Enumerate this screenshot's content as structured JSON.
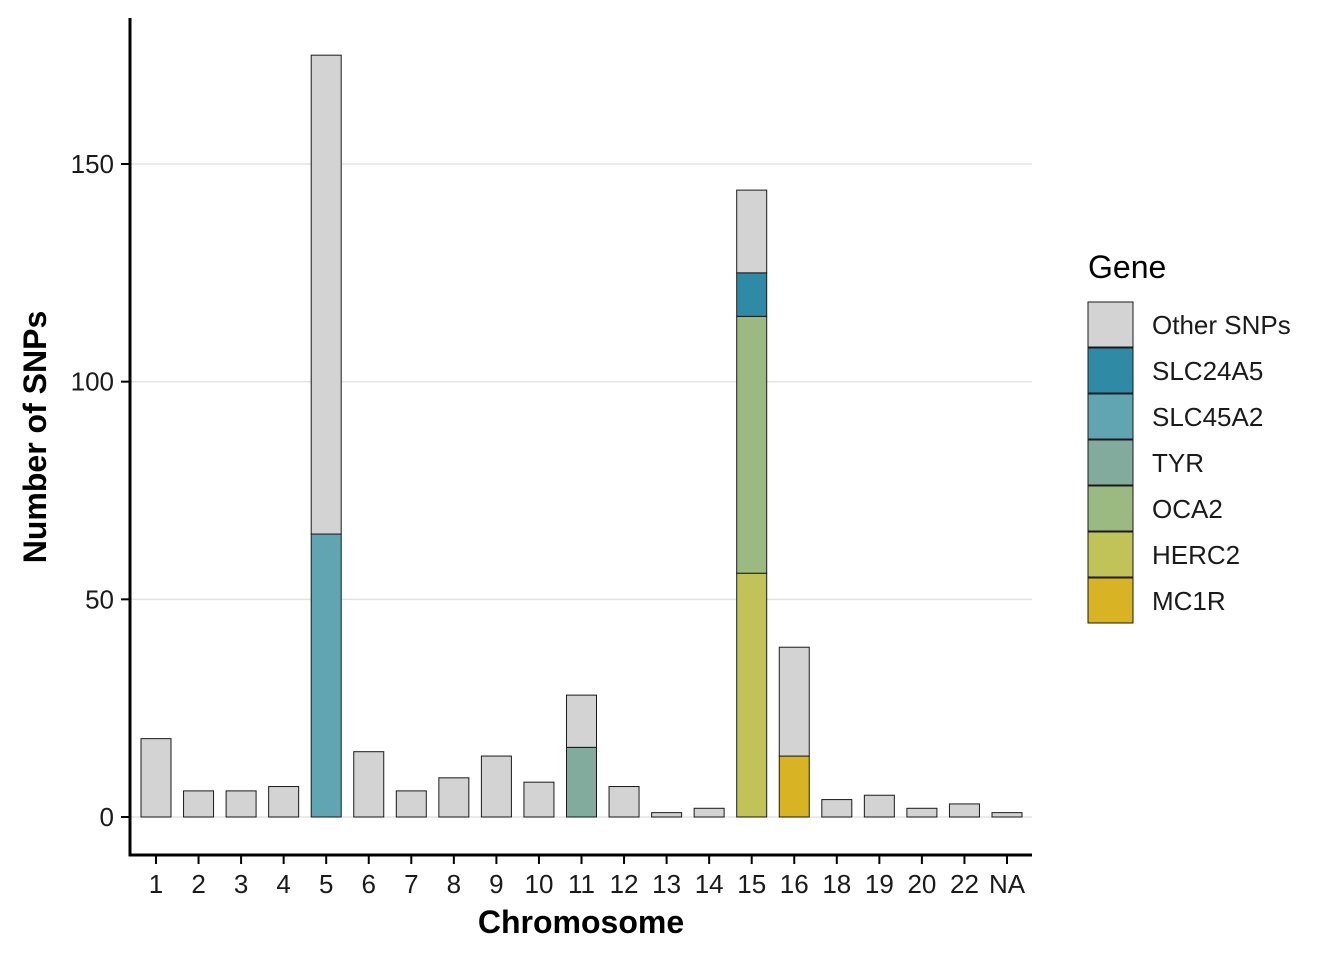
{
  "chart_data": {
    "type": "bar",
    "stacked": true,
    "title": "",
    "xlabel": "Chromosome",
    "ylabel": "Number of SNPs",
    "ylim": [
      -9,
      184
    ],
    "yticks": [
      0,
      50,
      100,
      150
    ],
    "grid": "horizontal major",
    "legend_title": "Gene",
    "legend_position": "right",
    "categories": [
      "1",
      "2",
      "3",
      "4",
      "5",
      "6",
      "7",
      "8",
      "9",
      "10",
      "11",
      "12",
      "13",
      "14",
      "15",
      "16",
      "18",
      "19",
      "20",
      "22",
      "NA"
    ],
    "series": [
      {
        "name": "MC1R",
        "color": "#D8B425",
        "values": [
          0,
          0,
          0,
          0,
          0,
          0,
          0,
          0,
          0,
          0,
          0,
          0,
          0,
          0,
          0,
          14,
          0,
          0,
          0,
          0,
          0
        ]
      },
      {
        "name": "HERC2",
        "color": "#C1C258",
        "values": [
          0,
          0,
          0,
          0,
          0,
          0,
          0,
          0,
          0,
          0,
          0,
          0,
          0,
          0,
          56,
          0,
          0,
          0,
          0,
          0,
          0
        ]
      },
      {
        "name": "OCA2",
        "color": "#9BBA82",
        "values": [
          0,
          0,
          0,
          0,
          0,
          0,
          0,
          0,
          0,
          0,
          0,
          0,
          0,
          0,
          59,
          0,
          0,
          0,
          0,
          0,
          0
        ]
      },
      {
        "name": "TYR",
        "color": "#82AB9E",
        "values": [
          0,
          0,
          0,
          0,
          0,
          0,
          0,
          0,
          0,
          0,
          16,
          0,
          0,
          0,
          0,
          0,
          0,
          0,
          0,
          0,
          0
        ]
      },
      {
        "name": "SLC45A2",
        "color": "#61A5B3",
        "values": [
          0,
          0,
          0,
          0,
          65,
          0,
          0,
          0,
          0,
          0,
          0,
          0,
          0,
          0,
          0,
          0,
          0,
          0,
          0,
          0,
          0
        ]
      },
      {
        "name": "SLC24A5",
        "color": "#2F8BA5",
        "values": [
          0,
          0,
          0,
          0,
          0,
          0,
          0,
          0,
          0,
          0,
          0,
          0,
          0,
          0,
          10,
          0,
          0,
          0,
          0,
          0,
          0
        ]
      },
      {
        "name": "Other SNPs",
        "color": "#D3D3D3",
        "values": [
          18,
          6,
          6,
          7,
          110,
          15,
          6,
          9,
          14,
          8,
          12,
          7,
          1,
          2,
          19,
          25,
          4,
          5,
          2,
          3,
          1
        ]
      }
    ],
    "legend_order": [
      "Other SNPs",
      "SLC24A5",
      "SLC45A2",
      "TYR",
      "OCA2",
      "HERC2",
      "MC1R"
    ]
  }
}
